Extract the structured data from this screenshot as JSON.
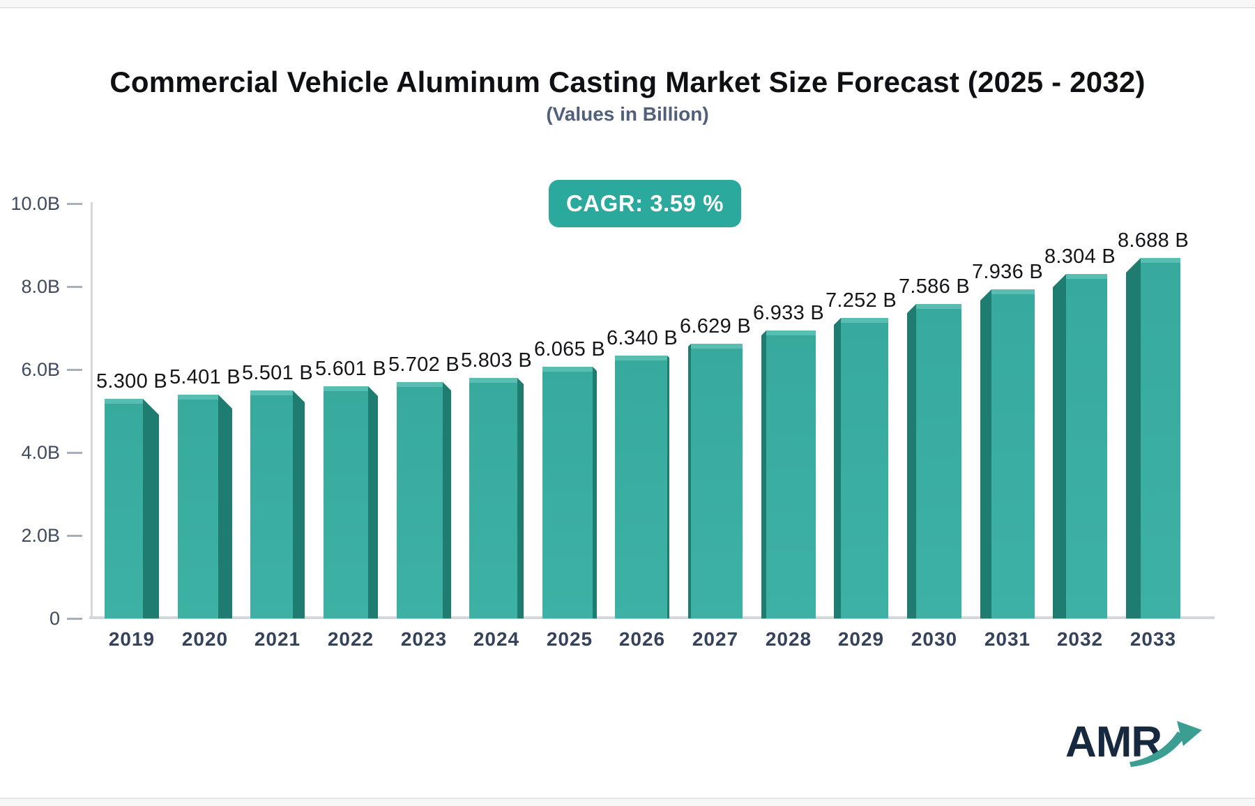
{
  "header": {
    "title": "Commercial Vehicle Aluminum Casting Market Size Forecast (2025 - 2032)",
    "subtitle": "(Values in Billion)"
  },
  "cagr_badge": {
    "label": "CAGR: 3.59 %",
    "background": "#2ba99d",
    "text_color": "#ffffff"
  },
  "chart_data": {
    "type": "bar",
    "title": "Commercial Vehicle Aluminum Casting Market Size Forecast (2025 - 2032)",
    "subtitle": "(Values in Billion)",
    "categories": [
      "2019",
      "2020",
      "2021",
      "2022",
      "2023",
      "2024",
      "2025",
      "2026",
      "2027",
      "2028",
      "2029",
      "2030",
      "2031",
      "2032",
      "2033"
    ],
    "values": [
      5.3,
      5.401,
      5.501,
      5.601,
      5.702,
      5.803,
      6.065,
      6.34,
      6.629,
      6.933,
      7.252,
      7.586,
      7.936,
      8.304,
      8.688
    ],
    "value_labels": [
      "5.300 B",
      "5.401 B",
      "5.501 B",
      "5.601 B",
      "5.702 B",
      "5.803 B",
      "6.065 B",
      "6.340 B",
      "6.629 B",
      "6.933 B",
      "7.252 B",
      "7.586 B",
      "7.936 B",
      "8.304 B",
      "8.688 B"
    ],
    "cagr": "CAGR: 3.59 %",
    "ylim": [
      0,
      10
    ],
    "yticks": [
      {
        "label": "10.0B",
        "value": 10
      },
      {
        "label": "8.0B",
        "value": 8
      },
      {
        "label": "6.0B",
        "value": 6
      },
      {
        "label": "4.0B",
        "value": 4
      },
      {
        "label": "2.0B",
        "value": 2
      },
      {
        "label": "0",
        "value": 0
      }
    ],
    "xlabel": "",
    "ylabel": "",
    "grid": false,
    "legend": false,
    "bar_face_color": "#37aa9d",
    "bar_face_gradient_bottom": "#3db1a4",
    "bar_top_highlight_color": "#5abdb1",
    "bar_side_color": "#1e7d70",
    "axis_line_color": "#d2d6dd",
    "tick_color": "#a9afba",
    "label_color": "#141519",
    "year_label_color": "#35425c"
  },
  "logo": {
    "text": "AMR",
    "text_color": "#16293f",
    "arrow_color": "#3a9e93"
  }
}
